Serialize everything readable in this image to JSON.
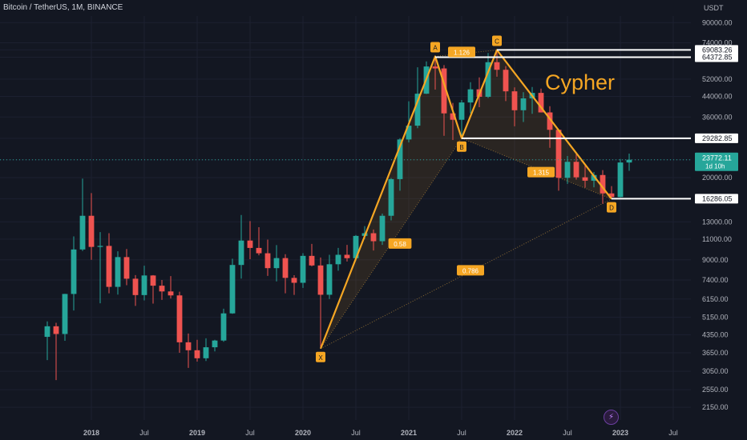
{
  "header": {
    "symbol": "Bitcoin / TetherUS, 1M, BINANCE",
    "currency": "USDT"
  },
  "annotation_title": "Cypher",
  "colors": {
    "up": "#26a69a",
    "down": "#ef5350",
    "pattern": "#f5a623",
    "background": "#131722"
  },
  "chart_data": {
    "type": "candlestick",
    "y_scale": "log",
    "ylim": [
      1900,
      96000
    ],
    "xlim": [
      "2017-08",
      "2023-09"
    ],
    "price_ticks": [
      2150,
      2550,
      3050,
      3650,
      4350,
      5150,
      6150,
      7400,
      9000,
      11000,
      13000,
      16286.05,
      20000,
      23772.11,
      29282.85,
      36000,
      44000,
      52000,
      64372.85,
      69083.26,
      74000,
      90000
    ],
    "x_ticks": [
      {
        "date": "2018-01",
        "label": "2018"
      },
      {
        "date": "2018-07",
        "label": "Jul"
      },
      {
        "date": "2019-01",
        "label": "2019"
      },
      {
        "date": "2019-07",
        "label": "Jul"
      },
      {
        "date": "2020-01",
        "label": "2020"
      },
      {
        "date": "2020-07",
        "label": "Jul"
      },
      {
        "date": "2021-01",
        "label": "2021"
      },
      {
        "date": "2021-07",
        "label": "Jul"
      },
      {
        "date": "2022-01",
        "label": "2022"
      },
      {
        "date": "2022-07",
        "label": "Jul"
      },
      {
        "date": "2023-01",
        "label": "2023"
      },
      {
        "date": "2023-07",
        "label": "Jul"
      }
    ],
    "candles": [
      {
        "t": "2017-08",
        "o": 4260,
        "h": 4950,
        "l": 3400,
        "c": 4720
      },
      {
        "t": "2017-09",
        "o": 4720,
        "h": 4880,
        "l": 2800,
        "c": 4380
      },
      {
        "t": "2017-10",
        "o": 4380,
        "h": 6470,
        "l": 4100,
        "c": 6460
      },
      {
        "t": "2017-11",
        "o": 6460,
        "h": 11300,
        "l": 5500,
        "c": 9950
      },
      {
        "t": "2017-12",
        "o": 9950,
        "h": 19800,
        "l": 9800,
        "c": 13800
      },
      {
        "t": "2018-01",
        "o": 13800,
        "h": 17200,
        "l": 9000,
        "c": 10200
      },
      {
        "t": "2018-02",
        "o": 10200,
        "h": 11780,
        "l": 5900,
        "c": 10300
      },
      {
        "t": "2018-03",
        "o": 10300,
        "h": 11650,
        "l": 6500,
        "c": 6920
      },
      {
        "t": "2018-04",
        "o": 6920,
        "h": 9770,
        "l": 6420,
        "c": 9240
      },
      {
        "t": "2018-05",
        "o": 9240,
        "h": 10000,
        "l": 7030,
        "c": 7490
      },
      {
        "t": "2018-06",
        "o": 7490,
        "h": 7760,
        "l": 5750,
        "c": 6390
      },
      {
        "t": "2018-07",
        "o": 6390,
        "h": 8500,
        "l": 6070,
        "c": 7730
      },
      {
        "t": "2018-08",
        "o": 7730,
        "h": 7760,
        "l": 5880,
        "c": 7000
      },
      {
        "t": "2018-09",
        "o": 7000,
        "h": 7400,
        "l": 6100,
        "c": 6620
      },
      {
        "t": "2018-10",
        "o": 6620,
        "h": 7680,
        "l": 6180,
        "c": 6370
      },
      {
        "t": "2018-11",
        "o": 6370,
        "h": 6600,
        "l": 3650,
        "c": 4040
      },
      {
        "t": "2018-12",
        "o": 4040,
        "h": 4400,
        "l": 3150,
        "c": 3740
      },
      {
        "t": "2019-01",
        "o": 3740,
        "h": 4140,
        "l": 3350,
        "c": 3460
      },
      {
        "t": "2019-02",
        "o": 3460,
        "h": 4200,
        "l": 3370,
        "c": 3850
      },
      {
        "t": "2019-03",
        "o": 3850,
        "h": 4140,
        "l": 3700,
        "c": 4110
      },
      {
        "t": "2019-04",
        "o": 4110,
        "h": 5600,
        "l": 4060,
        "c": 5350
      },
      {
        "t": "2019-05",
        "o": 5350,
        "h": 9100,
        "l": 5330,
        "c": 8560
      },
      {
        "t": "2019-06",
        "o": 8560,
        "h": 13900,
        "l": 7500,
        "c": 10850
      },
      {
        "t": "2019-07",
        "o": 10850,
        "h": 13100,
        "l": 9050,
        "c": 10100
      },
      {
        "t": "2019-08",
        "o": 10100,
        "h": 12350,
        "l": 9400,
        "c": 9590
      },
      {
        "t": "2019-09",
        "o": 9590,
        "h": 10950,
        "l": 7700,
        "c": 8300
      },
      {
        "t": "2019-10",
        "o": 8300,
        "h": 10380,
        "l": 7300,
        "c": 9150
      },
      {
        "t": "2019-11",
        "o": 9150,
        "h": 9500,
        "l": 6500,
        "c": 7550
      },
      {
        "t": "2019-12",
        "o": 7550,
        "h": 7750,
        "l": 6400,
        "c": 7200
      },
      {
        "t": "2020-01",
        "o": 7200,
        "h": 9600,
        "l": 6850,
        "c": 9350
      },
      {
        "t": "2020-02",
        "o": 9350,
        "h": 10500,
        "l": 8450,
        "c": 8520
      },
      {
        "t": "2020-03",
        "o": 8520,
        "h": 9200,
        "l": 3800,
        "c": 6410
      },
      {
        "t": "2020-04",
        "o": 6410,
        "h": 9450,
        "l": 6150,
        "c": 8620
      },
      {
        "t": "2020-05",
        "o": 8620,
        "h": 10100,
        "l": 8100,
        "c": 9450
      },
      {
        "t": "2020-06",
        "o": 9450,
        "h": 10400,
        "l": 8850,
        "c": 9140
      },
      {
        "t": "2020-07",
        "o": 9140,
        "h": 11450,
        "l": 8900,
        "c": 11350
      },
      {
        "t": "2020-08",
        "o": 11350,
        "h": 12480,
        "l": 11000,
        "c": 11650
      },
      {
        "t": "2020-09",
        "o": 11650,
        "h": 12080,
        "l": 9850,
        "c": 10780
      },
      {
        "t": "2020-10",
        "o": 10780,
        "h": 14100,
        "l": 10400,
        "c": 13800
      },
      {
        "t": "2020-11",
        "o": 13800,
        "h": 19900,
        "l": 13200,
        "c": 19700
      },
      {
        "t": "2020-12",
        "o": 19700,
        "h": 29300,
        "l": 17600,
        "c": 28950
      },
      {
        "t": "2021-01",
        "o": 28950,
        "h": 41950,
        "l": 28130,
        "c": 33100
      },
      {
        "t": "2021-02",
        "o": 33100,
        "h": 58350,
        "l": 32300,
        "c": 45150
      },
      {
        "t": "2021-03",
        "o": 45150,
        "h": 61800,
        "l": 45000,
        "c": 58800
      },
      {
        "t": "2021-04",
        "o": 58800,
        "h": 64850,
        "l": 47000,
        "c": 57700
      },
      {
        "t": "2021-05",
        "o": 57700,
        "h": 59600,
        "l": 30000,
        "c": 37300
      },
      {
        "t": "2021-06",
        "o": 37300,
        "h": 41300,
        "l": 28800,
        "c": 35050
      },
      {
        "t": "2021-07",
        "o": 35050,
        "h": 42450,
        "l": 29300,
        "c": 41460
      },
      {
        "t": "2021-08",
        "o": 41460,
        "h": 50500,
        "l": 37300,
        "c": 47100
      },
      {
        "t": "2021-09",
        "o": 47100,
        "h": 52900,
        "l": 39600,
        "c": 43800
      },
      {
        "t": "2021-10",
        "o": 43800,
        "h": 67000,
        "l": 43300,
        "c": 61300
      },
      {
        "t": "2021-11",
        "o": 61300,
        "h": 69000,
        "l": 53250,
        "c": 56950
      },
      {
        "t": "2021-12",
        "o": 56950,
        "h": 59050,
        "l": 42000,
        "c": 46200
      },
      {
        "t": "2022-01",
        "o": 46200,
        "h": 47990,
        "l": 32900,
        "c": 38450
      },
      {
        "t": "2022-02",
        "o": 38450,
        "h": 45800,
        "l": 34300,
        "c": 43150
      },
      {
        "t": "2022-03",
        "o": 43150,
        "h": 48200,
        "l": 37150,
        "c": 45500
      },
      {
        "t": "2022-04",
        "o": 45500,
        "h": 47450,
        "l": 37600,
        "c": 37650
      },
      {
        "t": "2022-05",
        "o": 37650,
        "h": 40000,
        "l": 26700,
        "c": 31800
      },
      {
        "t": "2022-06",
        "o": 31800,
        "h": 31950,
        "l": 17600,
        "c": 19950
      },
      {
        "t": "2022-07",
        "o": 19950,
        "h": 24650,
        "l": 18800,
        "c": 23300
      },
      {
        "t": "2022-08",
        "o": 23300,
        "h": 25200,
        "l": 19600,
        "c": 20050
      },
      {
        "t": "2022-09",
        "o": 20050,
        "h": 22800,
        "l": 18150,
        "c": 19400
      },
      {
        "t": "2022-10",
        "o": 19400,
        "h": 21100,
        "l": 18200,
        "c": 20500
      },
      {
        "t": "2022-11",
        "o": 20500,
        "h": 21500,
        "l": 15500,
        "c": 17150
      },
      {
        "t": "2022-12",
        "o": 17150,
        "h": 18400,
        "l": 16250,
        "c": 16550
      },
      {
        "t": "2023-01",
        "o": 16550,
        "h": 23950,
        "l": 16500,
        "c": 23150
      },
      {
        "t": "2023-02",
        "o": 23150,
        "h": 25250,
        "l": 21350,
        "c": 23772.11
      }
    ],
    "pattern": {
      "name": "Cypher",
      "points": [
        {
          "label": "X",
          "t": "2020-03",
          "price": 3800
        },
        {
          "label": "A",
          "t": "2021-04",
          "price": 64850
        },
        {
          "label": "B",
          "t": "2021-07",
          "price": 29300
        },
        {
          "label": "C",
          "t": "2021-11",
          "price": 69000
        },
        {
          "label": "D",
          "t": "2022-12",
          "price": 16250
        }
      ],
      "ratios": [
        {
          "label": "0.58",
          "t": "2020-12",
          "price": 10500
        },
        {
          "label": "1.126",
          "t": "2021-07",
          "price": 67500
        },
        {
          "label": "1.315",
          "t": "2022-04",
          "price": 21000
        },
        {
          "label": "0.786",
          "t": "2021-08",
          "price": 8100
        }
      ]
    },
    "levels": [
      {
        "price": 69083.26,
        "label": "69083.26",
        "from": "2021-11"
      },
      {
        "price": 64372.85,
        "label": "64372.85",
        "from": "2021-04"
      },
      {
        "price": 29282.85,
        "label": "29282.85",
        "from": "2021-07"
      },
      {
        "price": 16286.05,
        "label": "16286.05",
        "from": "2022-12"
      }
    ],
    "last_price": {
      "price": 23772.11,
      "label": "23772.11",
      "countdown": "1d 10h"
    }
  }
}
